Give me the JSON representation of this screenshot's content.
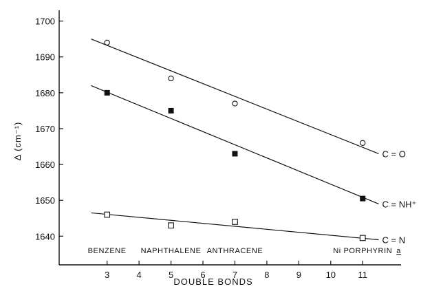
{
  "chart_data": {
    "type": "scatter",
    "title": "",
    "xlabel": "DOUBLE BONDS",
    "ylabel": "Δ (cm⁻¹)",
    "xlim": [
      1.5,
      12.2
    ],
    "ylim": [
      1632,
      1703
    ],
    "x_ticks": [
      3,
      4,
      5,
      6,
      7,
      8,
      9,
      10,
      11
    ],
    "y_ticks": [
      1640,
      1650,
      1660,
      1670,
      1680,
      1690,
      1700
    ],
    "grid": false,
    "legend": "none",
    "series": [
      {
        "name": "C = O",
        "marker": "open-circle",
        "x": [
          3,
          5,
          7,
          11
        ],
        "y": [
          1694,
          1684,
          1677,
          1666
        ],
        "fit": [
          [
            2.5,
            1695
          ],
          [
            11.5,
            1663
          ]
        ]
      },
      {
        "name": "C = NH⁺",
        "marker": "filled-square",
        "x": [
          3,
          5,
          7,
          11
        ],
        "y": [
          1680,
          1675,
          1663,
          1650.5
        ],
        "fit": [
          [
            2.5,
            1682
          ],
          [
            11.5,
            1649
          ]
        ]
      },
      {
        "name": "C = N",
        "marker": "open-square",
        "x": [
          3,
          5,
          7,
          11
        ],
        "y": [
          1646,
          1643,
          1644,
          1639.5
        ],
        "fit": [
          [
            2.5,
            1646.5
          ],
          [
            11.5,
            1639
          ]
        ]
      }
    ],
    "annotations": [
      {
        "text": "BENZENE",
        "x": 3
      },
      {
        "text": "NAPHTHALENE",
        "x": 5
      },
      {
        "text": "ANTHRACENE",
        "x": 7
      },
      {
        "text": "Ni PORPHYRIN",
        "x": 11,
        "suffix": "a"
      }
    ]
  }
}
